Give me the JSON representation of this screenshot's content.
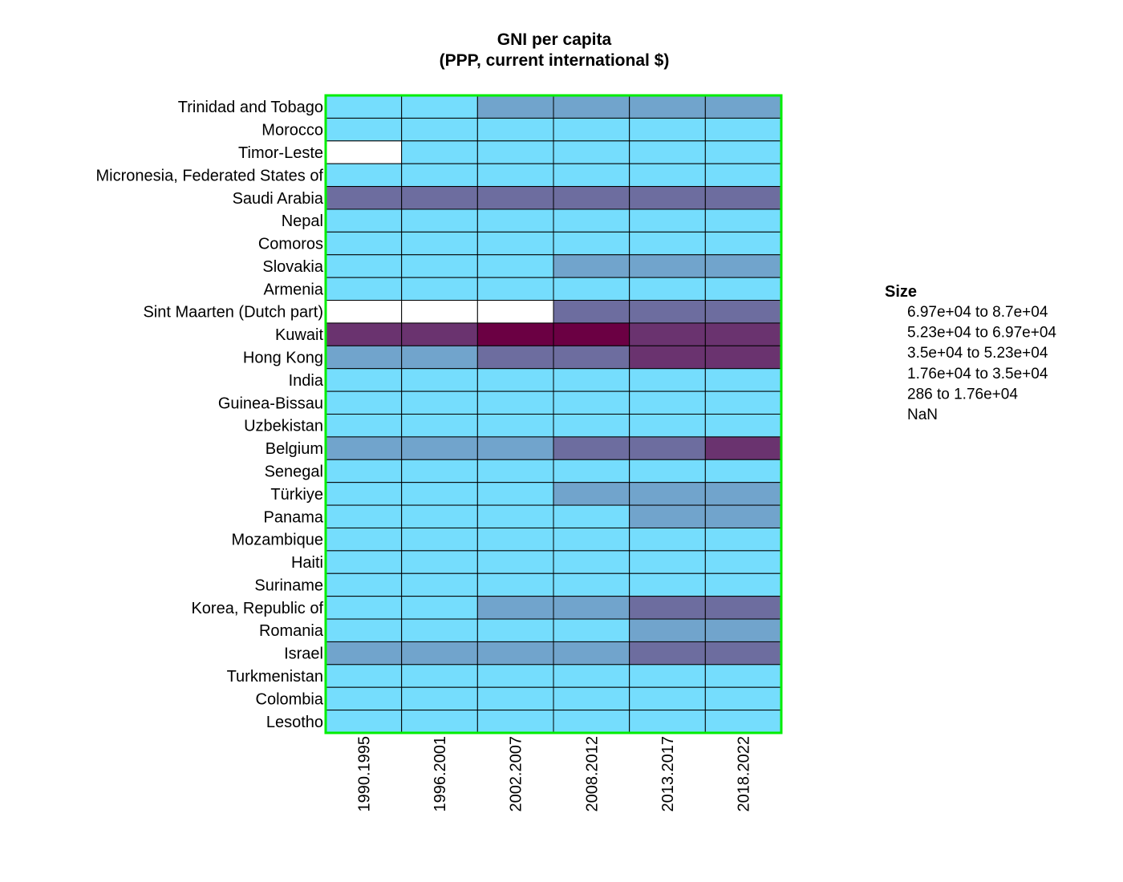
{
  "chart_data": {
    "type": "heatmap",
    "title": "GNI per capita",
    "subtitle": "(PPP, current international $)",
    "columns": [
      "1990.1995",
      "1996.2001",
      "2002.2007",
      "2008.2012",
      "2013.2017",
      "2018.2022"
    ],
    "rows": [
      "Trinidad and Tobago",
      "Morocco",
      "Timor-Leste",
      "Micronesia, Federated States of",
      "Saudi Arabia",
      "Nepal",
      "Comoros",
      "Slovakia",
      "Armenia",
      "Sint Maarten (Dutch part)",
      "Kuwait",
      "Hong Kong",
      "India",
      "Guinea-Bissau",
      "Uzbekistan",
      "Belgium",
      "Senegal",
      "Türkiye",
      "Panama",
      "Mozambique",
      "Haiti",
      "Suriname",
      "Korea, Republic of",
      "Romania",
      "Israel",
      "Turkmenistan",
      "Colombia",
      "Lesotho"
    ],
    "bins_note": "cell values are legend bin indices: 0 = NaN, 1 = 286 to 1.76e+04, 2 = 1.76e+04 to 3.5e+04, 3 = 3.5e+04 to 5.23e+04, 4 = 5.23e+04 to 6.97e+04, 5 = 6.97e+04 to 8.7e+04",
    "cells": [
      [
        1,
        1,
        2,
        2,
        2,
        2
      ],
      [
        1,
        1,
        1,
        1,
        1,
        1
      ],
      [
        0,
        1,
        1,
        1,
        1,
        1
      ],
      [
        1,
        1,
        1,
        1,
        1,
        1
      ],
      [
        3,
        3,
        3,
        3,
        3,
        3
      ],
      [
        1,
        1,
        1,
        1,
        1,
        1
      ],
      [
        1,
        1,
        1,
        1,
        1,
        1
      ],
      [
        1,
        1,
        1,
        2,
        2,
        2
      ],
      [
        1,
        1,
        1,
        1,
        1,
        1
      ],
      [
        0,
        0,
        0,
        3,
        3,
        3
      ],
      [
        4,
        4,
        5,
        5,
        4,
        4
      ],
      [
        2,
        2,
        3,
        3,
        4,
        4
      ],
      [
        1,
        1,
        1,
        1,
        1,
        1
      ],
      [
        1,
        1,
        1,
        1,
        1,
        1
      ],
      [
        1,
        1,
        1,
        1,
        1,
        1
      ],
      [
        2,
        2,
        2,
        3,
        3,
        4
      ],
      [
        1,
        1,
        1,
        1,
        1,
        1
      ],
      [
        1,
        1,
        1,
        2,
        2,
        2
      ],
      [
        1,
        1,
        1,
        1,
        2,
        2
      ],
      [
        1,
        1,
        1,
        1,
        1,
        1
      ],
      [
        1,
        1,
        1,
        1,
        1,
        1
      ],
      [
        1,
        1,
        1,
        1,
        1,
        1
      ],
      [
        1,
        1,
        2,
        2,
        3,
        3
      ],
      [
        1,
        1,
        1,
        1,
        2,
        2
      ],
      [
        2,
        2,
        2,
        2,
        3,
        3
      ],
      [
        1,
        1,
        1,
        1,
        1,
        1
      ],
      [
        1,
        1,
        1,
        1,
        1,
        1
      ],
      [
        1,
        1,
        1,
        1,
        1,
        1
      ]
    ],
    "legend": {
      "title": "Size",
      "placement": "right",
      "items": [
        {
          "low": "6.97e+04",
          "sep": "to",
          "high": "8.7e+04",
          "color": "#6b0043"
        },
        {
          "low": "5.23e+04",
          "sep": "to",
          "high": "6.97e+04",
          "color": "#6a336f"
        },
        {
          "low": "3.5e+04",
          "sep": "to",
          "high": "5.23e+04",
          "color": "#6d6d9f"
        },
        {
          "low": "1.76e+04",
          "sep": "to",
          "high": "3.5e+04",
          "color": "#71a4cc"
        },
        {
          "low": "286",
          "sep": "to",
          "high": "1.76e+04",
          "color": "#75ddfd"
        },
        {
          "low": "NaN",
          "sep": "",
          "high": "",
          "color": "#ffffff"
        }
      ]
    },
    "colors": {
      "0": "#ffffff",
      "1": "#75ddfd",
      "2": "#71a4cc",
      "3": "#6d6d9f",
      "4": "#6a336f",
      "5": "#6b0043",
      "frame": "#00ee00",
      "gridline": "#000000"
    }
  }
}
